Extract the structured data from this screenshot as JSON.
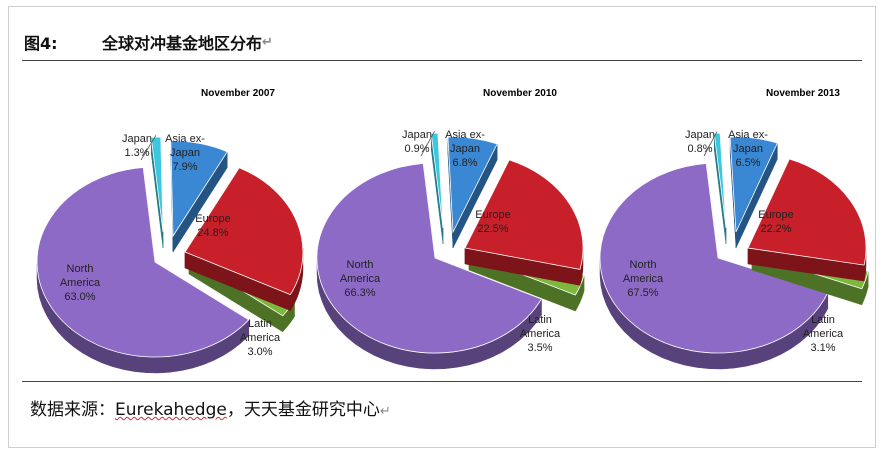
{
  "figure": {
    "number": "图4:",
    "title": "全球对冲基金地区分布",
    "source_prefix": "数据来源：",
    "source_org": "Eurekahedge",
    "source_suffix": "，天天基金研究中心",
    "para_mark": "↵"
  },
  "colors": {
    "North America": "#8e6ac7",
    "Latin America": "#7cb83e",
    "Europe": "#c8202a",
    "Asia ex-Japan": "#3a88d4",
    "Japan": "#3cc7de"
  },
  "chart_data": [
    {
      "type": "pie",
      "title": "November 2007",
      "slices": [
        {
          "label": "North America",
          "value": 63.0,
          "value_label": "63.0%"
        },
        {
          "label": "Latin America",
          "value": 3.0,
          "value_label": "3.0%"
        },
        {
          "label": "Europe",
          "value": 24.8,
          "value_label": "24.8%"
        },
        {
          "label": "Asia ex-Japan",
          "value": 7.9,
          "value_label": "7.9%"
        },
        {
          "label": "Japan",
          "value": 1.3,
          "value_label": "1.3%"
        }
      ]
    },
    {
      "type": "pie",
      "title": "November 2010",
      "slices": [
        {
          "label": "North America",
          "value": 66.3,
          "value_label": "66.3%"
        },
        {
          "label": "Latin America",
          "value": 3.5,
          "value_label": "3.5%"
        },
        {
          "label": "Europe",
          "value": 22.5,
          "value_label": "22.5%"
        },
        {
          "label": "Asia ex-Japan",
          "value": 6.8,
          "value_label": "6.8%"
        },
        {
          "label": "Japan",
          "value": 0.9,
          "value_label": "0.9%"
        }
      ]
    },
    {
      "type": "pie",
      "title": "November 2013",
      "slices": [
        {
          "label": "North America",
          "value": 67.5,
          "value_label": "67.5%"
        },
        {
          "label": "Latin America",
          "value": 3.1,
          "value_label": "3.1%"
        },
        {
          "label": "Europe",
          "value": 22.2,
          "value_label": "22.2%"
        },
        {
          "label": "Asia ex-Japan",
          "value": 6.5,
          "value_label": "6.5%"
        },
        {
          "label": "Japan",
          "value": 0.8,
          "value_label": "0.8%"
        }
      ]
    }
  ]
}
